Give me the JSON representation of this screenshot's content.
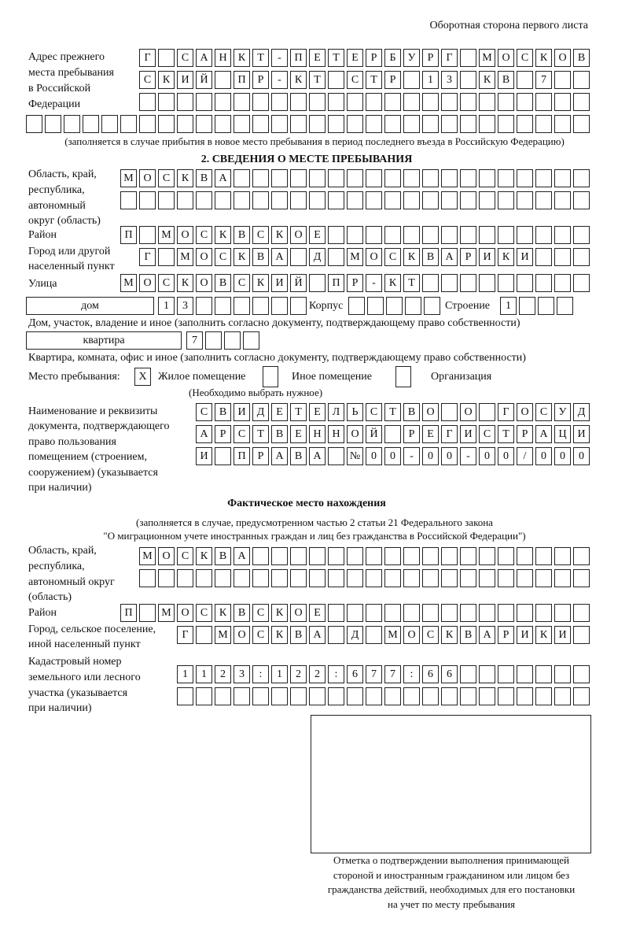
{
  "page_header": "Оборотная сторона первого листа",
  "prev_address": {
    "label": "Адрес прежнего места пребывания в Российской Федерации",
    "label_lines": [
      "Адрес прежнего",
      "места пребывания",
      "в Российской",
      "Федерации"
    ],
    "rows": [
      [
        "Г",
        "",
        "С",
        "А",
        "Н",
        "К",
        "Т",
        "-",
        "П",
        "Е",
        "Т",
        "Е",
        "Р",
        "Б",
        "У",
        "Р",
        "Г",
        "",
        "М",
        "О",
        "С",
        "К",
        "О",
        "В"
      ],
      [
        "С",
        "К",
        "И",
        "Й",
        "",
        "П",
        "Р",
        "-",
        "К",
        "Т",
        "",
        "С",
        "Т",
        "Р",
        "",
        "1",
        "3",
        "",
        "К",
        "В",
        "",
        "7",
        "",
        ""
      ],
      [
        "",
        "",
        "",
        "",
        "",
        "",
        "",
        "",
        "",
        "",
        "",
        "",
        "",
        "",
        "",
        "",
        "",
        "",
        "",
        "",
        "",
        "",
        "",
        ""
      ],
      [
        "",
        "",
        "",
        "",
        "",
        "",
        "",
        "",
        "",
        "",
        "",
        "",
        "",
        "",
        "",
        "",
        "",
        "",
        "",
        "",
        "",
        "",
        "",
        "",
        "",
        "",
        "",
        "",
        "",
        ""
      ]
    ],
    "note": "(заполняется в случае прибытия в новое место пребывания в период последнего въезда в Российскую Федерацию)"
  },
  "section2": {
    "title": "2. СВЕДЕНИЯ О МЕСТЕ ПРЕБЫВАНИЯ",
    "region_label": [
      "Область, край,",
      "республика,",
      "автономный",
      "округ (область)"
    ],
    "region_rows": [
      [
        "М",
        "О",
        "С",
        "К",
        "В",
        "А",
        "",
        "",
        "",
        "",
        "",
        "",
        "",
        "",
        "",
        "",
        "",
        "",
        "",
        "",
        "",
        "",
        "",
        "",
        ""
      ],
      [
        "",
        "",
        "",
        "",
        "",
        "",
        "",
        "",
        "",
        "",
        "",
        "",
        "",
        "",
        "",
        "",
        "",
        "",
        "",
        "",
        "",
        "",
        "",
        "",
        ""
      ]
    ],
    "district_label": "Район",
    "district": [
      "П",
      "",
      "М",
      "О",
      "С",
      "К",
      "В",
      "С",
      "К",
      "О",
      "Е",
      "",
      "",
      "",
      "",
      "",
      "",
      "",
      "",
      "",
      "",
      "",
      "",
      "",
      ""
    ],
    "city_label": [
      "Город или другой",
      "населенный пункт"
    ],
    "city": [
      "Г",
      "",
      "М",
      "О",
      "С",
      "К",
      "В",
      "А",
      "",
      "Д",
      "",
      "М",
      "О",
      "С",
      "К",
      "В",
      "А",
      "Р",
      "И",
      "К",
      "И",
      "",
      "",
      ""
    ],
    "street_label": "Улица",
    "street": [
      "М",
      "О",
      "С",
      "К",
      "О",
      "В",
      "С",
      "К",
      "И",
      "Й",
      "",
      "П",
      "Р",
      "-",
      "К",
      "Т",
      "",
      "",
      "",
      "",
      "",
      "",
      "",
      "",
      ""
    ],
    "house_type": "дом",
    "house": [
      "1",
      "3",
      "",
      "",
      "",
      "",
      "",
      ""
    ],
    "korpus_label": "Корпус",
    "korpus": [
      "",
      "",
      "",
      "",
      ""
    ],
    "building_label": "Строение",
    "building": [
      "1",
      "",
      "",
      ""
    ],
    "house_note": "Дом, участок, владение и иное (заполнить согласно документу, подтверждающему право собственности)",
    "apt_type": "квартира",
    "apt": [
      "7",
      "",
      "",
      ""
    ],
    "apt_note": "Квартира, комната, офис и иное (заполнить согласно документу, подтверждающему право собственности)",
    "stay_label": "Место пребывания:",
    "stay_options": [
      {
        "label": "Жилое помещение",
        "mark": "X"
      },
      {
        "label": "Иное помещение",
        "mark": ""
      },
      {
        "label": "Организация",
        "mark": ""
      }
    ],
    "stay_note": "(Необходимо выбрать нужное)",
    "doc_label": [
      "Наименование и реквизиты",
      "документа, подтверждающего",
      "право пользования",
      "помещением (строением,",
      "сооружением) (указывается",
      "при наличии)"
    ],
    "doc_rows": [
      [
        "С",
        "В",
        "И",
        "Д",
        "Е",
        "Т",
        "Е",
        "Л",
        "Ь",
        "С",
        "Т",
        "В",
        "О",
        "",
        "О",
        "",
        "Г",
        "О",
        "С",
        "У",
        "Д"
      ],
      [
        "А",
        "Р",
        "С",
        "Т",
        "В",
        "Е",
        "Н",
        "Н",
        "О",
        "Й",
        "",
        "Р",
        "Е",
        "Г",
        "И",
        "С",
        "Т",
        "Р",
        "А",
        "Ц",
        "И"
      ],
      [
        "И",
        "",
        "П",
        "Р",
        "А",
        "В",
        "А",
        "",
        "№",
        "0",
        "0",
        "-",
        "0",
        "0",
        "-",
        "0",
        "0",
        "/",
        "0",
        "0",
        "0"
      ]
    ]
  },
  "actual": {
    "title": "Фактическое место нахождения",
    "note1": "(заполняется в случае, предусмотренном частью 2 статьи 21 Федерального закона",
    "note2": "\"О миграционном учете иностранных граждан и лиц без гражданства в Российской Федерации\")",
    "region_label": [
      "Область, край,",
      "республика,",
      "автономный округ",
      "(область)"
    ],
    "region_rows": [
      [
        "М",
        "О",
        "С",
        "К",
        "В",
        "А",
        "",
        "",
        "",
        "",
        "",
        "",
        "",
        "",
        "",
        "",
        "",
        "",
        "",
        "",
        "",
        "",
        "",
        ""
      ],
      [
        "",
        "",
        "",
        "",
        "",
        "",
        "",
        "",
        "",
        "",
        "",
        "",
        "",
        "",
        "",
        "",
        "",
        "",
        "",
        "",
        "",
        "",
        "",
        ""
      ]
    ],
    "district_label": "Район",
    "district": [
      "П",
      "",
      "М",
      "О",
      "С",
      "К",
      "В",
      "С",
      "К",
      "О",
      "Е",
      "",
      "",
      "",
      "",
      "",
      "",
      "",
      "",
      "",
      "",
      "",
      "",
      "",
      ""
    ],
    "city_label": [
      "Город, сельское поселение,",
      "иной населенный пункт"
    ],
    "city": [
      "Г",
      "",
      "М",
      "О",
      "С",
      "К",
      "В",
      "А",
      "",
      "Д",
      "",
      "М",
      "О",
      "С",
      "К",
      "В",
      "А",
      "Р",
      "И",
      "К",
      "И",
      ""
    ],
    "cadastral_label": [
      "Кадастровый номер",
      "земельного или лесного",
      "участка (указывается",
      "при наличии)"
    ],
    "cadastral_rows": [
      [
        "1",
        "1",
        "2",
        "3",
        ":",
        "1",
        "2",
        "2",
        ":",
        "6",
        "7",
        "7",
        ":",
        "6",
        "6",
        "",
        "",
        "",
        "",
        "",
        "",
        ""
      ],
      [
        "",
        "",
        "",
        "",
        "",
        "",
        "",
        "",
        "",
        "",
        "",
        "",
        "",
        "",
        "",
        "",
        "",
        "",
        "",
        "",
        "",
        ""
      ]
    ]
  },
  "stamp": {
    "caption": [
      "Отметка о подтверждении выполнения принимающей",
      "стороной и иностранным гражданином или лицом без",
      "гражданства действий, необходимых для его постановки",
      "на учет по месту пребывания"
    ]
  }
}
